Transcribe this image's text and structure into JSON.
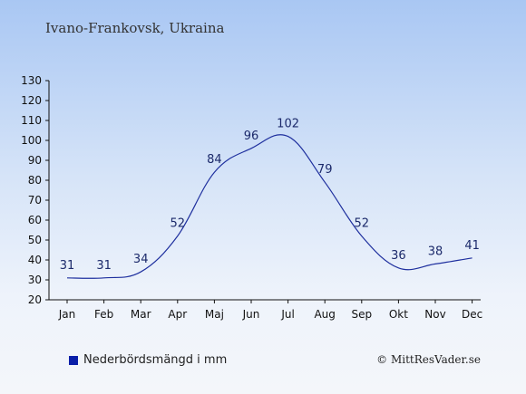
{
  "location_title": "Ivano-Frankovsk, Ukraina",
  "legend_label": "Nederbördsmängd i mm",
  "copyright": "© MittResVader.se",
  "colors": {
    "series_line": "#1e2f9e",
    "legend_swatch": "#0a1fa8",
    "axis": "#111111"
  },
  "chart_data": {
    "type": "line",
    "categories": [
      "Jan",
      "Feb",
      "Mar",
      "Apr",
      "Maj",
      "Jun",
      "Jul",
      "Aug",
      "Sep",
      "Okt",
      "Nov",
      "Dec"
    ],
    "series": [
      {
        "name": "Nederbördsmängd i mm",
        "values": [
          31,
          31,
          34,
          52,
          84,
          96,
          102,
          79,
          52,
          36,
          38,
          41
        ]
      }
    ],
    "data_labels": [
      "31",
      "31",
      "34",
      "52",
      "84",
      "96",
      "102",
      "79",
      "52",
      "36",
      "38",
      "41"
    ],
    "y_ticks": [
      20,
      30,
      40,
      50,
      60,
      70,
      80,
      90,
      100,
      110,
      120,
      130
    ],
    "ylim": [
      20,
      130
    ],
    "grid": false,
    "legend_position": "bottom-left"
  }
}
